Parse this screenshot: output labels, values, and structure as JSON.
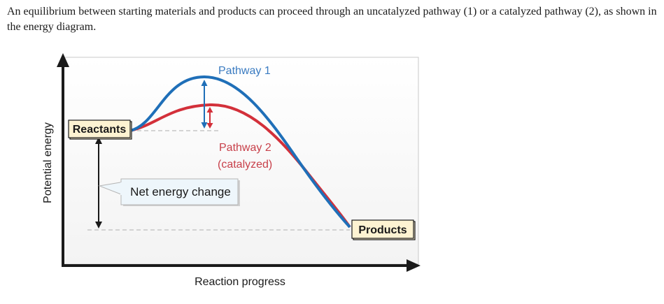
{
  "intro_text": "An equilibrium between starting materials and products can proceed through an uncatalyzed pathway (1) or a catalyzed pathway (2), as shown in the energy diagram.",
  "diagram": {
    "y_axis_label": "Potential energy",
    "x_axis_label": "Reaction progress",
    "reactants_label": "Reactants",
    "products_label": "Products",
    "pathway1_label": "Pathway 1",
    "pathway2_label_line1": "Pathway 2",
    "pathway2_label_line2": "(catalyzed)",
    "net_energy_label": "Net energy change",
    "colors": {
      "pathway1": "#1f6fb8",
      "pathway2": "#d3303a",
      "label_box_fill": "#fdf3d2",
      "callout_fill": "#eef6fb",
      "text_blue": "#3a7bc1",
      "text_red": "#c8404a"
    }
  }
}
